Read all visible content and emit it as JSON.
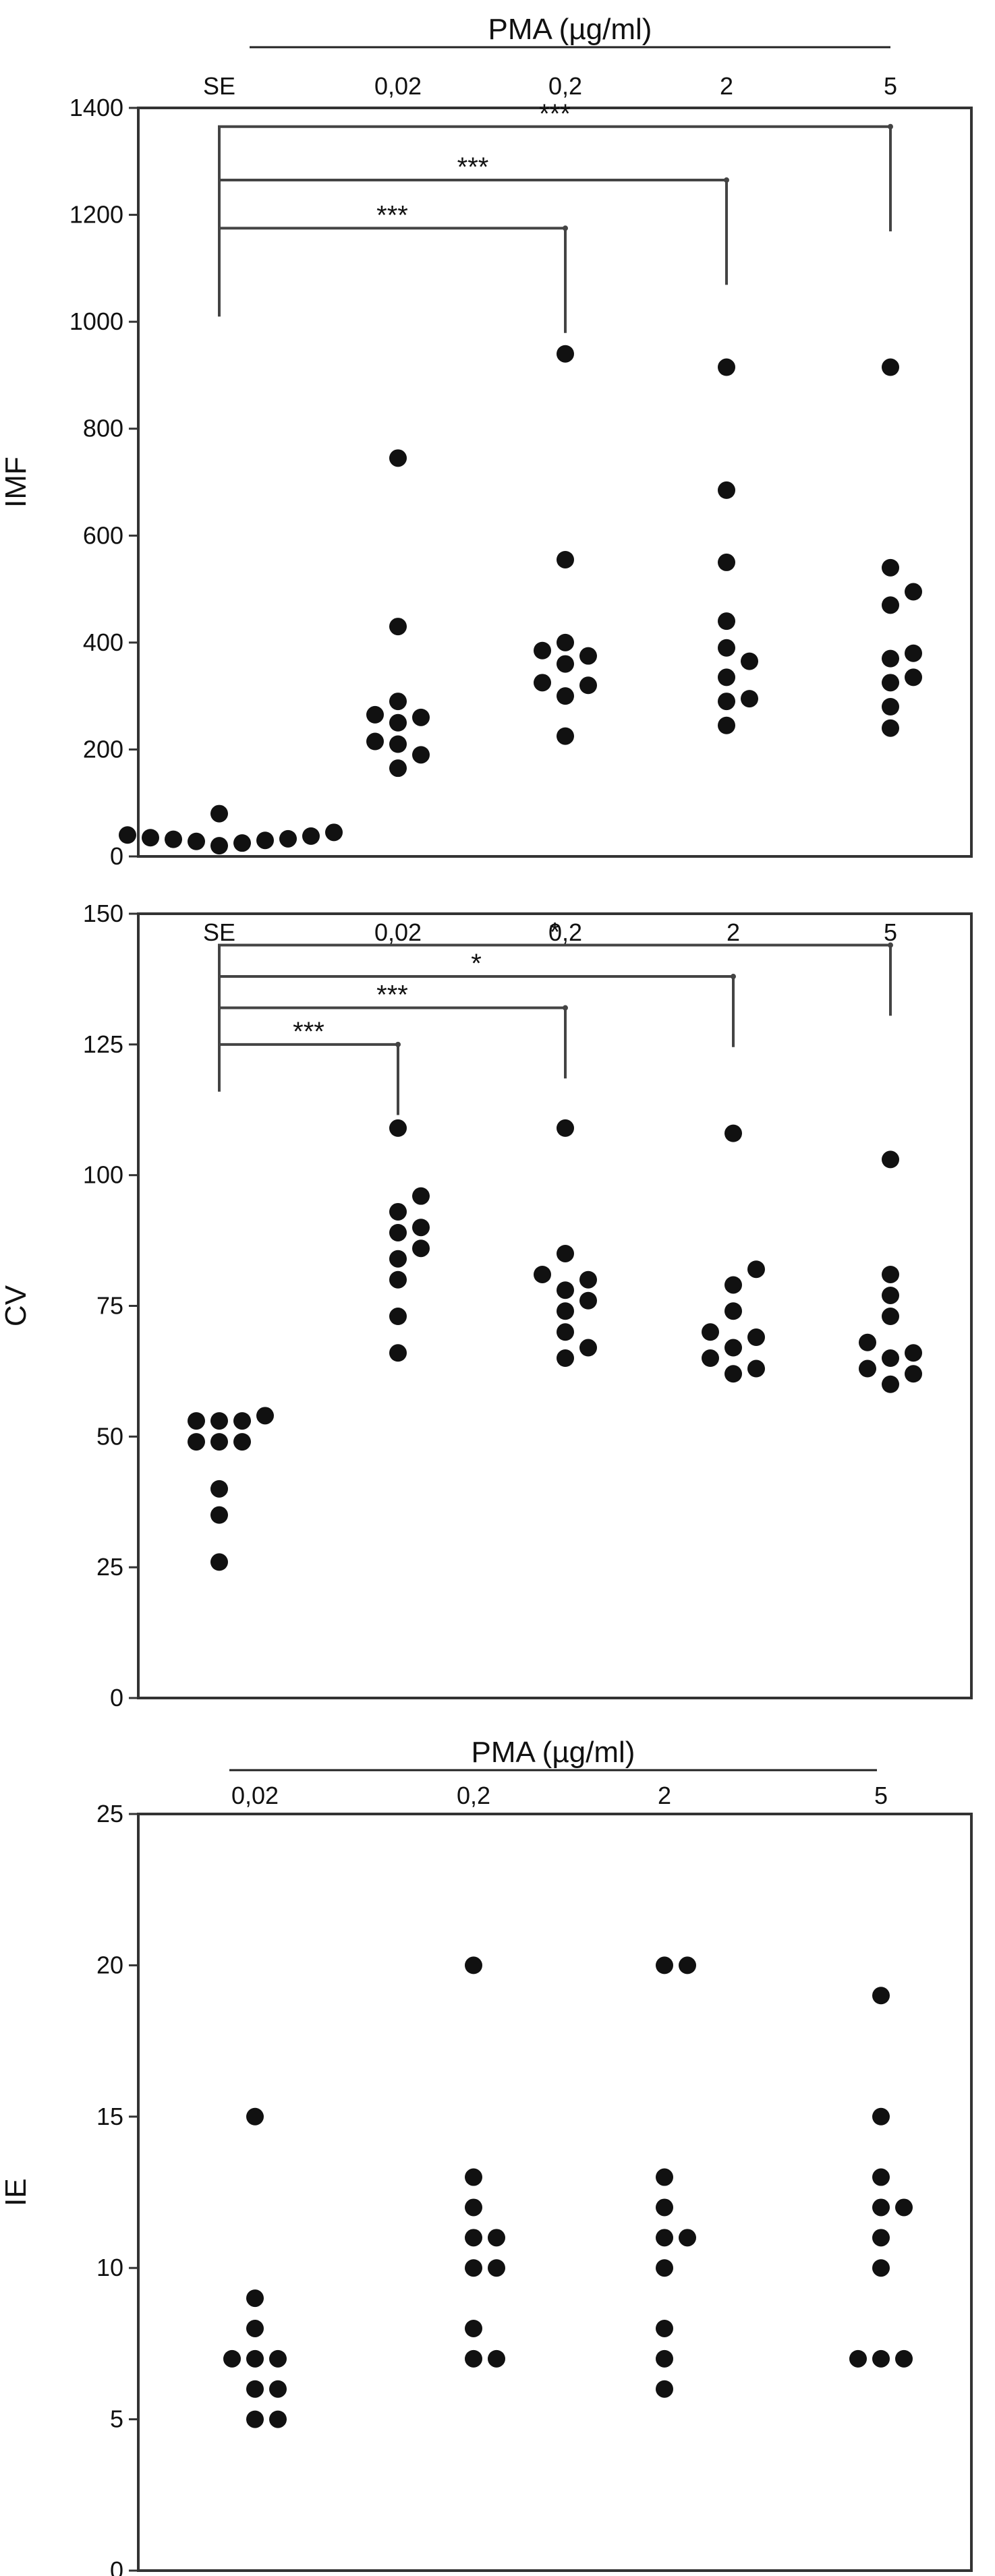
{
  "chart_data": [
    {
      "type": "scatter",
      "group_title": "PMA (µg/ml)",
      "categories": [
        "SE",
        "0,02",
        "0,2",
        "2",
        "5"
      ],
      "ylabel": "IMF",
      "ylim": [
        0,
        1400
      ],
      "yticks": [
        "0",
        "200",
        "400",
        "600",
        "800",
        "1000",
        "1200",
        "1400"
      ],
      "points": [
        {
          "x": "SE",
          "y": 20
        },
        {
          "x": "SE",
          "y": 25
        },
        {
          "x": "SE",
          "y": 28
        },
        {
          "x": "SE",
          "y": 30
        },
        {
          "x": "SE",
          "y": 32
        },
        {
          "x": "SE",
          "y": 33
        },
        {
          "x": "SE",
          "y": 35
        },
        {
          "x": "SE",
          "y": 38
        },
        {
          "x": "SE",
          "y": 40
        },
        {
          "x": "SE",
          "y": 45
        },
        {
          "x": "SE",
          "y": 80
        },
        {
          "x": "0,02",
          "y": 745
        },
        {
          "x": "0,02",
          "y": 430
        },
        {
          "x": "0,02",
          "y": 290
        },
        {
          "x": "0,02",
          "y": 260
        },
        {
          "x": "0,02",
          "y": 265
        },
        {
          "x": "0,02",
          "y": 250
        },
        {
          "x": "0,02",
          "y": 210
        },
        {
          "x": "0,02",
          "y": 215
        },
        {
          "x": "0,02",
          "y": 190
        },
        {
          "x": "0,02",
          "y": 165
        },
        {
          "x": "0,2",
          "y": 940
        },
        {
          "x": "0,2",
          "y": 555
        },
        {
          "x": "0,2",
          "y": 400
        },
        {
          "x": "0,2",
          "y": 385
        },
        {
          "x": "0,2",
          "y": 375
        },
        {
          "x": "0,2",
          "y": 360
        },
        {
          "x": "0,2",
          "y": 325
        },
        {
          "x": "0,2",
          "y": 320
        },
        {
          "x": "0,2",
          "y": 300
        },
        {
          "x": "0,2",
          "y": 225
        },
        {
          "x": "2",
          "y": 915
        },
        {
          "x": "2",
          "y": 685
        },
        {
          "x": "2",
          "y": 550
        },
        {
          "x": "2",
          "y": 440
        },
        {
          "x": "2",
          "y": 390
        },
        {
          "x": "2",
          "y": 365
        },
        {
          "x": "2",
          "y": 335
        },
        {
          "x": "2",
          "y": 295
        },
        {
          "x": "2",
          "y": 290
        },
        {
          "x": "2",
          "y": 245
        },
        {
          "x": "5",
          "y": 915
        },
        {
          "x": "5",
          "y": 540
        },
        {
          "x": "5",
          "y": 495
        },
        {
          "x": "5",
          "y": 470
        },
        {
          "x": "5",
          "y": 380
        },
        {
          "x": "5",
          "y": 370
        },
        {
          "x": "5",
          "y": 335
        },
        {
          "x": "5",
          "y": 325
        },
        {
          "x": "5",
          "y": 280
        },
        {
          "x": "5",
          "y": 240
        }
      ],
      "comparisons": [
        {
          "from": "SE",
          "to": "0,2",
          "label": "***",
          "y": 1175
        },
        {
          "from": "SE",
          "to": "2",
          "label": "***",
          "y": 1265
        },
        {
          "from": "SE",
          "to": "5",
          "label": "***",
          "y": 1365
        }
      ],
      "bracket_base": 1010
    },
    {
      "type": "scatter",
      "categories": [
        "SE",
        "0,02",
        "0,2",
        "2",
        "5"
      ],
      "ylabel": "CV",
      "ylim": [
        0,
        150
      ],
      "yticks": [
        "0",
        "25",
        "50",
        "75",
        "100",
        "125",
        "150"
      ],
      "points": [
        {
          "x": "SE",
          "y": 54
        },
        {
          "x": "SE",
          "y": 53
        },
        {
          "x": "SE",
          "y": 53
        },
        {
          "x": "SE",
          "y": 53
        },
        {
          "x": "SE",
          "y": 49
        },
        {
          "x": "SE",
          "y": 49
        },
        {
          "x": "SE",
          "y": 49
        },
        {
          "x": "SE",
          "y": 40
        },
        {
          "x": "SE",
          "y": 35
        },
        {
          "x": "SE",
          "y": 26
        },
        {
          "x": "0,02",
          "y": 109
        },
        {
          "x": "0,02",
          "y": 96
        },
        {
          "x": "0,02",
          "y": 93
        },
        {
          "x": "0,02",
          "y": 89
        },
        {
          "x": "0,02",
          "y": 90
        },
        {
          "x": "0,02",
          "y": 86
        },
        {
          "x": "0,02",
          "y": 84
        },
        {
          "x": "0,02",
          "y": 80
        },
        {
          "x": "0,02",
          "y": 73
        },
        {
          "x": "0,02",
          "y": 66
        },
        {
          "x": "0,2",
          "y": 109
        },
        {
          "x": "0,2",
          "y": 85
        },
        {
          "x": "0,2",
          "y": 81
        },
        {
          "x": "0,2",
          "y": 80
        },
        {
          "x": "0,2",
          "y": 78
        },
        {
          "x": "0,2",
          "y": 76
        },
        {
          "x": "0,2",
          "y": 74
        },
        {
          "x": "0,2",
          "y": 70
        },
        {
          "x": "0,2",
          "y": 67
        },
        {
          "x": "0,2",
          "y": 65
        },
        {
          "x": "2",
          "y": 108
        },
        {
          "x": "2",
          "y": 82
        },
        {
          "x": "2",
          "y": 79
        },
        {
          "x": "2",
          "y": 74
        },
        {
          "x": "2",
          "y": 70
        },
        {
          "x": "2",
          "y": 69
        },
        {
          "x": "2",
          "y": 67
        },
        {
          "x": "2",
          "y": 65
        },
        {
          "x": "2",
          "y": 63
        },
        {
          "x": "2",
          "y": 62
        },
        {
          "x": "5",
          "y": 103
        },
        {
          "x": "5",
          "y": 81
        },
        {
          "x": "5",
          "y": 77
        },
        {
          "x": "5",
          "y": 73
        },
        {
          "x": "5",
          "y": 68
        },
        {
          "x": "5",
          "y": 66
        },
        {
          "x": "5",
          "y": 65
        },
        {
          "x": "5",
          "y": 63
        },
        {
          "x": "5",
          "y": 62
        },
        {
          "x": "5",
          "y": 60
        }
      ],
      "comparisons": [
        {
          "from": "SE",
          "to": "0,02",
          "label": "***",
          "y": 125
        },
        {
          "from": "SE",
          "to": "0,2",
          "label": "***",
          "y": 132
        },
        {
          "from": "SE",
          "to": "2",
          "label": "*",
          "y": 138
        },
        {
          "from": "SE",
          "to": "5",
          "label": "*",
          "y": 144
        }
      ],
      "bracket_base": 116
    },
    {
      "type": "scatter",
      "group_title": "PMA (µg/ml)",
      "categories": [
        "0,02",
        "0,2",
        "2",
        "5"
      ],
      "ylabel": "IE",
      "ylim": [
        0,
        25
      ],
      "yticks": [
        "0",
        "5",
        "10",
        "15",
        "20",
        "25"
      ],
      "points": [
        {
          "x": "0,02",
          "y": 15
        },
        {
          "x": "0,02",
          "y": 9
        },
        {
          "x": "0,02",
          "y": 8
        },
        {
          "x": "0,02",
          "y": 7
        },
        {
          "x": "0,02",
          "y": 7
        },
        {
          "x": "0,02",
          "y": 7
        },
        {
          "x": "0,02",
          "y": 6
        },
        {
          "x": "0,02",
          "y": 6
        },
        {
          "x": "0,02",
          "y": 5
        },
        {
          "x": "0,02",
          "y": 5
        },
        {
          "x": "0,2",
          "y": 20
        },
        {
          "x": "0,2",
          "y": 13
        },
        {
          "x": "0,2",
          "y": 12
        },
        {
          "x": "0,2",
          "y": 11
        },
        {
          "x": "0,2",
          "y": 11
        },
        {
          "x": "0,2",
          "y": 10
        },
        {
          "x": "0,2",
          "y": 10
        },
        {
          "x": "0,2",
          "y": 8
        },
        {
          "x": "0,2",
          "y": 7
        },
        {
          "x": "0,2",
          "y": 7
        },
        {
          "x": "2",
          "y": 20
        },
        {
          "x": "2",
          "y": 20
        },
        {
          "x": "2",
          "y": 13
        },
        {
          "x": "2",
          "y": 12
        },
        {
          "x": "2",
          "y": 11
        },
        {
          "x": "2",
          "y": 11
        },
        {
          "x": "2",
          "y": 10
        },
        {
          "x": "2",
          "y": 8
        },
        {
          "x": "2",
          "y": 7
        },
        {
          "x": "2",
          "y": 6
        },
        {
          "x": "5",
          "y": 19
        },
        {
          "x": "5",
          "y": 15
        },
        {
          "x": "5",
          "y": 13
        },
        {
          "x": "5",
          "y": 12
        },
        {
          "x": "5",
          "y": 12
        },
        {
          "x": "5",
          "y": 11
        },
        {
          "x": "5",
          "y": 10
        },
        {
          "x": "5",
          "y": 7
        },
        {
          "x": "5",
          "y": 7
        },
        {
          "x": "5",
          "y": 7
        }
      ],
      "comparisons": []
    }
  ]
}
